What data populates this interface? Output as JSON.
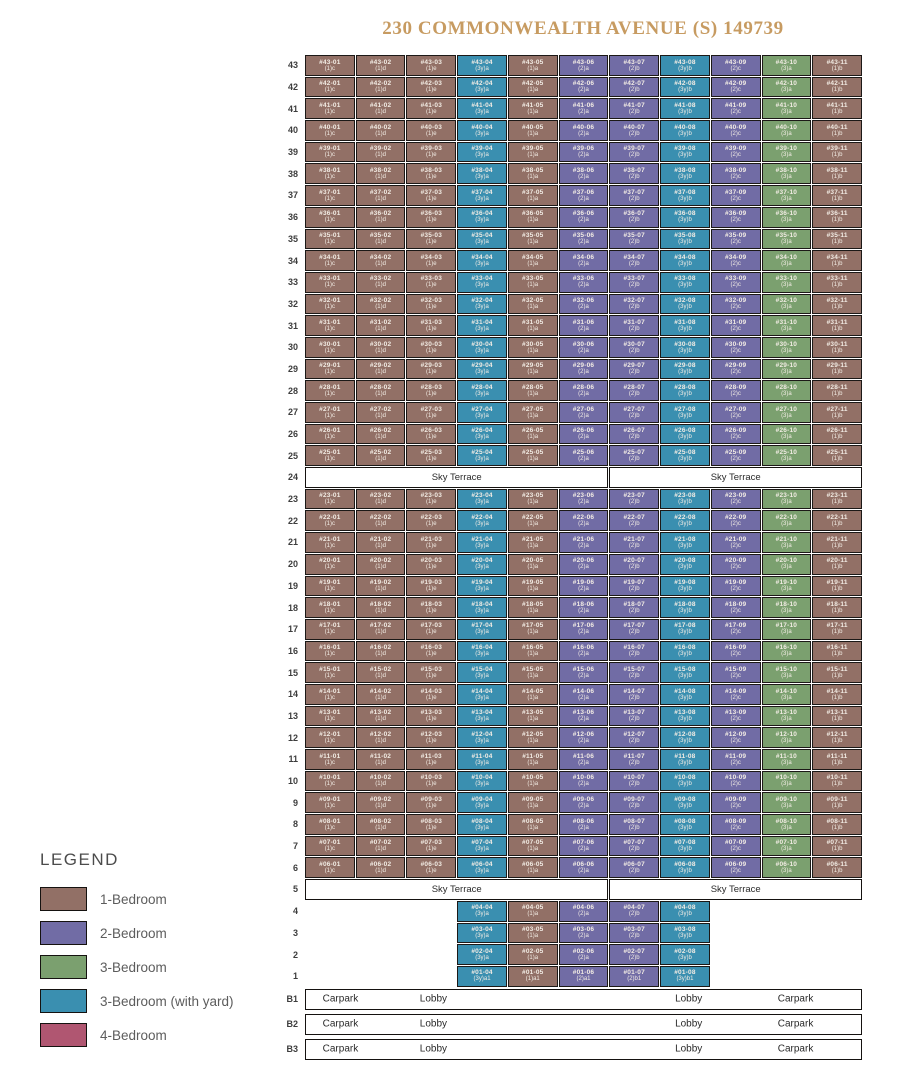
{
  "title": "230 COMMONWEALTH AVENUE (S) 149739",
  "colors": {
    "t1": "#927066",
    "t2": "#716ca5",
    "t3": "#7ba06f",
    "t3y": "#3a8fb0",
    "t4": "#b05671",
    "cell_border": "#1c1917",
    "title_text": "#c79b61"
  },
  "legend": {
    "title": "LEGEND",
    "items": [
      {
        "label": "1-Bedroom",
        "type": "t1"
      },
      {
        "label": "2-Bedroom",
        "type": "t2"
      },
      {
        "label": "3-Bedroom",
        "type": "t3"
      },
      {
        "label": "3-Bedroom (with yard)",
        "type": "t3y"
      },
      {
        "label": "4-Bedroom",
        "type": "t4"
      }
    ]
  },
  "unit_prefix": "#",
  "stacks": [
    {
      "no": "01",
      "subtype": "(1)c",
      "type": "t1"
    },
    {
      "no": "02",
      "subtype": "(1)d",
      "type": "t1"
    },
    {
      "no": "03",
      "subtype": "(1)e",
      "type": "t1"
    },
    {
      "no": "04",
      "subtype": "(3y)a",
      "type": "t3y"
    },
    {
      "no": "05",
      "subtype": "(1)a",
      "type": "t1"
    },
    {
      "no": "06",
      "subtype": "(2)a",
      "type": "t2"
    },
    {
      "no": "07",
      "subtype": "(2)b",
      "type": "t2"
    },
    {
      "no": "08",
      "subtype": "(3y)b",
      "type": "t3y"
    },
    {
      "no": "09",
      "subtype": "(2)c",
      "type": "t2"
    },
    {
      "no": "10",
      "subtype": "(3)a",
      "type": "t3"
    },
    {
      "no": "11",
      "subtype": "(1)b",
      "type": "t1"
    }
  ],
  "sky_label": "Sky Terrace",
  "floors": [
    {
      "label": "43",
      "kind": "full"
    },
    {
      "label": "42",
      "kind": "full"
    },
    {
      "label": "41",
      "kind": "full"
    },
    {
      "label": "40",
      "kind": "full"
    },
    {
      "label": "39",
      "kind": "full"
    },
    {
      "label": "38",
      "kind": "full"
    },
    {
      "label": "37",
      "kind": "full"
    },
    {
      "label": "36",
      "kind": "full"
    },
    {
      "label": "35",
      "kind": "full"
    },
    {
      "label": "34",
      "kind": "full"
    },
    {
      "label": "33",
      "kind": "full"
    },
    {
      "label": "32",
      "kind": "full"
    },
    {
      "label": "31",
      "kind": "full"
    },
    {
      "label": "30",
      "kind": "full"
    },
    {
      "label": "29",
      "kind": "full"
    },
    {
      "label": "28",
      "kind": "full"
    },
    {
      "label": "27",
      "kind": "full"
    },
    {
      "label": "26",
      "kind": "full"
    },
    {
      "label": "25",
      "kind": "full"
    },
    {
      "label": "24",
      "kind": "sky",
      "sections": [
        {
          "label": "Sky Terrace",
          "cols": 6
        },
        {
          "label": "Sky Terrace",
          "cols": 5
        }
      ]
    },
    {
      "label": "23",
      "kind": "full"
    },
    {
      "label": "22",
      "kind": "full"
    },
    {
      "label": "21",
      "kind": "full"
    },
    {
      "label": "20",
      "kind": "full"
    },
    {
      "label": "19",
      "kind": "full"
    },
    {
      "label": "18",
      "kind": "full"
    },
    {
      "label": "17",
      "kind": "full"
    },
    {
      "label": "16",
      "kind": "full"
    },
    {
      "label": "15",
      "kind": "full"
    },
    {
      "label": "14",
      "kind": "full"
    },
    {
      "label": "13",
      "kind": "full"
    },
    {
      "label": "12",
      "kind": "full"
    },
    {
      "label": "11",
      "kind": "full"
    },
    {
      "label": "10",
      "kind": "full"
    },
    {
      "label": "9",
      "kind": "full"
    },
    {
      "label": "8",
      "kind": "full"
    },
    {
      "label": "7",
      "kind": "full"
    },
    {
      "label": "6",
      "kind": "full"
    },
    {
      "label": "5",
      "kind": "sky",
      "sections": [
        {
          "label": "Sky Terrace",
          "cols": 6
        },
        {
          "label": "Sky Terrace",
          "cols": 5
        }
      ]
    },
    {
      "label": "4",
      "kind": "partial",
      "stacks": [
        "04",
        "05",
        "06",
        "07",
        "08"
      ]
    },
    {
      "label": "3",
      "kind": "partial",
      "stacks": [
        "04",
        "05",
        "06",
        "07",
        "08"
      ]
    },
    {
      "label": "2",
      "kind": "partial",
      "stacks": [
        "04",
        "05",
        "06",
        "07",
        "08"
      ]
    },
    {
      "label": "1",
      "kind": "partial",
      "stacks": [
        "04",
        "05",
        "06",
        "07",
        "08"
      ],
      "subtype_suffix": "1"
    },
    {
      "label": "B1",
      "kind": "basement",
      "labels": [
        "Carpark",
        "Lobby",
        "Lobby",
        "Carpark"
      ]
    },
    {
      "label": "B2",
      "kind": "basement",
      "labels": [
        "Carpark",
        "Lobby",
        "Lobby",
        "Carpark"
      ]
    },
    {
      "label": "B3",
      "kind": "basement",
      "labels": [
        "Carpark",
        "Lobby",
        "Lobby",
        "Carpark"
      ]
    }
  ]
}
